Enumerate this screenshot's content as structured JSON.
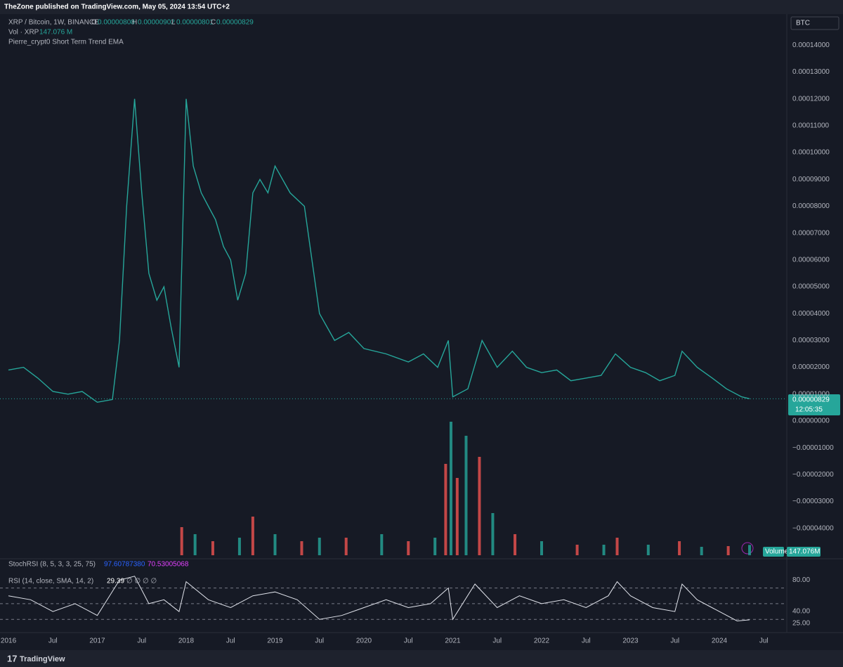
{
  "header": {
    "published": "TheZone published on TradingView.com, May 05, 2024 13:54 UTC+2",
    "footer": "TradingView"
  },
  "chart_data": {
    "type": "line",
    "legend": {
      "symbol": "XRP / Bitcoin, 1W, BINANCE",
      "o_key": "O",
      "o": "0.00000808",
      "h_key": "H",
      "h": "0.00000902",
      "l_key": "L",
      "l": "0.00000801",
      "c_key": "C",
      "c": "0.00000829",
      "vol_name": "Vol · XRP",
      "vol": "147.076 M",
      "indicator": "Pierre_crypt0 Short Term Trend EMA"
    },
    "currency": "BTC",
    "last_price_label": "0.00000829",
    "countdown": "12:05:35",
    "x": [
      2016.0,
      2016.17,
      2016.33,
      2016.5,
      2016.67,
      2016.83,
      2017.0,
      2017.17,
      2017.25,
      2017.33,
      2017.42,
      2017.5,
      2017.58,
      2017.67,
      2017.75,
      2017.83,
      2017.92,
      2018.0,
      2018.08,
      2018.17,
      2018.25,
      2018.33,
      2018.42,
      2018.5,
      2018.58,
      2018.67,
      2018.75,
      2018.83,
      2018.92,
      2019.0,
      2019.17,
      2019.33,
      2019.5,
      2019.67,
      2019.83,
      2020.0,
      2020.25,
      2020.5,
      2020.67,
      2020.83,
      2020.95,
      2021.0,
      2021.17,
      2021.33,
      2021.5,
      2021.67,
      2021.83,
      2022.0,
      2022.17,
      2022.33,
      2022.5,
      2022.67,
      2022.83,
      2023.0,
      2023.17,
      2023.33,
      2023.5,
      2023.58,
      2023.75,
      2023.92,
      2024.08,
      2024.25,
      2024.34
    ],
    "series": [
      {
        "name": "XRP / Bitcoin",
        "color": "#26a69a",
        "values": [
          1.9e-05,
          2e-05,
          1.6e-05,
          1.1e-05,
          1e-05,
          1.1e-05,
          7e-06,
          8e-06,
          3e-05,
          8e-05,
          0.00012,
          8.5e-05,
          5.5e-05,
          4.5e-05,
          5e-05,
          3.5e-05,
          2e-05,
          0.00012,
          9.5e-05,
          8.5e-05,
          8e-05,
          7.5e-05,
          6.5e-05,
          6e-05,
          4.5e-05,
          5.5e-05,
          8.5e-05,
          9e-05,
          8.5e-05,
          9.5e-05,
          8.5e-05,
          8e-05,
          4e-05,
          3e-05,
          3.3e-05,
          2.7e-05,
          2.5e-05,
          2.2e-05,
          2.5e-05,
          2e-05,
          3e-05,
          9e-06,
          1.2e-05,
          3e-05,
          2e-05,
          2.6e-05,
          2e-05,
          1.8e-05,
          1.9e-05,
          1.5e-05,
          1.6e-05,
          1.7e-05,
          2.5e-05,
          2e-05,
          1.8e-05,
          1.5e-05,
          1.7e-05,
          2.6e-05,
          2e-05,
          1.6e-05,
          1.2e-05,
          9e-06,
          8.29e-06
        ]
      }
    ],
    "ylim": [
      -5.08e-05,
      0.0001516
    ],
    "yticks": [
      {
        "value": 0.00014,
        "label": "0.00014000"
      },
      {
        "value": 0.00013,
        "label": "0.00013000"
      },
      {
        "value": 0.00012,
        "label": "0.00012000"
      },
      {
        "value": 0.00011,
        "label": "0.00011000"
      },
      {
        "value": 0.0001,
        "label": "0.00010000"
      },
      {
        "value": 9e-05,
        "label": "0.00009000"
      },
      {
        "value": 8e-05,
        "label": "0.00008000"
      },
      {
        "value": 7e-05,
        "label": "0.00007000"
      },
      {
        "value": 6e-05,
        "label": "0.00006000"
      },
      {
        "value": 5e-05,
        "label": "0.00005000"
      },
      {
        "value": 4e-05,
        "label": "0.00004000"
      },
      {
        "value": 3e-05,
        "label": "0.00003000"
      },
      {
        "value": 2e-05,
        "label": "0.00002000"
      },
      {
        "value": 1e-05,
        "label": "0.00001000"
      },
      {
        "value": 0,
        "label": "0.00000000"
      },
      {
        "value": -1e-05,
        "label": "−0.00001000"
      },
      {
        "value": -2e-05,
        "label": "−0.00002000"
      },
      {
        "value": -3e-05,
        "label": "−0.00003000"
      },
      {
        "value": -4e-05,
        "label": "−0.00004000"
      }
    ],
    "xlim": [
      2015.905,
      2024.759
    ],
    "xticks": [
      {
        "value": 2016,
        "label": "2016"
      },
      {
        "value": 2016.5,
        "label": "Jul"
      },
      {
        "value": 2017,
        "label": "2017"
      },
      {
        "value": 2017.5,
        "label": "Jul"
      },
      {
        "value": 2018,
        "label": "2018"
      },
      {
        "value": 2018.5,
        "label": "Jul"
      },
      {
        "value": 2019,
        "label": "2019"
      },
      {
        "value": 2019.5,
        "label": "Jul"
      },
      {
        "value": 2020,
        "label": "2020"
      },
      {
        "value": 2020.5,
        "label": "Jul"
      },
      {
        "value": 2021,
        "label": "2021"
      },
      {
        "value": 2021.5,
        "label": "Jul"
      },
      {
        "value": 2022,
        "label": "2022"
      },
      {
        "value": 2022.5,
        "label": "Jul"
      },
      {
        "value": 2023,
        "label": "2023"
      },
      {
        "value": 2023.5,
        "label": "Jul"
      },
      {
        "value": 2024,
        "label": "2024"
      },
      {
        "value": 2024.5,
        "label": "Jul"
      }
    ]
  },
  "volume": {
    "name": "Volume",
    "value_text": "147.076M",
    "color": "#ef5350",
    "ylim": [
      0,
      7700
    ],
    "x": [
      2017.95,
      2018.1,
      2018.3,
      2018.6,
      2018.75,
      2019.0,
      2019.3,
      2019.5,
      2019.8,
      2020.2,
      2020.5,
      2020.8,
      2020.92,
      2020.98,
      2021.05,
      2021.15,
      2021.3,
      2021.45,
      2021.7,
      2022.0,
      2022.4,
      2022.7,
      2022.85,
      2023.2,
      2023.55,
      2023.8,
      2024.1,
      2024.34
    ],
    "values": [
      400,
      300,
      200,
      250,
      550,
      300,
      200,
      250,
      250,
      300,
      200,
      250,
      1300,
      1900,
      1100,
      1700,
      1400,
      600,
      300,
      200,
      150,
      150,
      250,
      150,
      200,
      120,
      130,
      147.076
    ]
  },
  "stoch_rsi": {
    "name": "StochRSI (8, 5, 3, 3, 25, 75)",
    "k": "97.60787380",
    "d": "70.53005068"
  },
  "rsi": {
    "name": "RSI (14, close, SMA, 14, 2)",
    "empty": "∅ ∅ ∅ ∅",
    "color": "#e0e3eb",
    "ylim": [
      15,
      92
    ],
    "yticks": [
      {
        "value": 80,
        "label": "80.00"
      },
      {
        "value": 40,
        "label": "40.00"
      },
      {
        "value": 25,
        "label": "25.00"
      }
    ],
    "bands": [
      70,
      50,
      30
    ],
    "x": [
      2016.0,
      2016.25,
      2016.5,
      2016.75,
      2017.0,
      2017.25,
      2017.42,
      2017.58,
      2017.75,
      2017.92,
      2018.0,
      2018.25,
      2018.5,
      2018.75,
      2019.0,
      2019.25,
      2019.5,
      2019.75,
      2020.0,
      2020.25,
      2020.5,
      2020.75,
      2020.95,
      2021.0,
      2021.25,
      2021.5,
      2021.75,
      2022.0,
      2022.25,
      2022.5,
      2022.75,
      2022.85,
      2023.0,
      2023.25,
      2023.5,
      2023.58,
      2023.75,
      2024.0,
      2024.2,
      2024.34
    ],
    "values": [
      60,
      55,
      40,
      50,
      35,
      80,
      85,
      50,
      55,
      40,
      78,
      55,
      45,
      60,
      65,
      55,
      30,
      35,
      45,
      55,
      45,
      50,
      70,
      30,
      75,
      45,
      60,
      50,
      55,
      45,
      60,
      78,
      60,
      45,
      40,
      75,
      55,
      40,
      28,
      29.39
    ]
  }
}
